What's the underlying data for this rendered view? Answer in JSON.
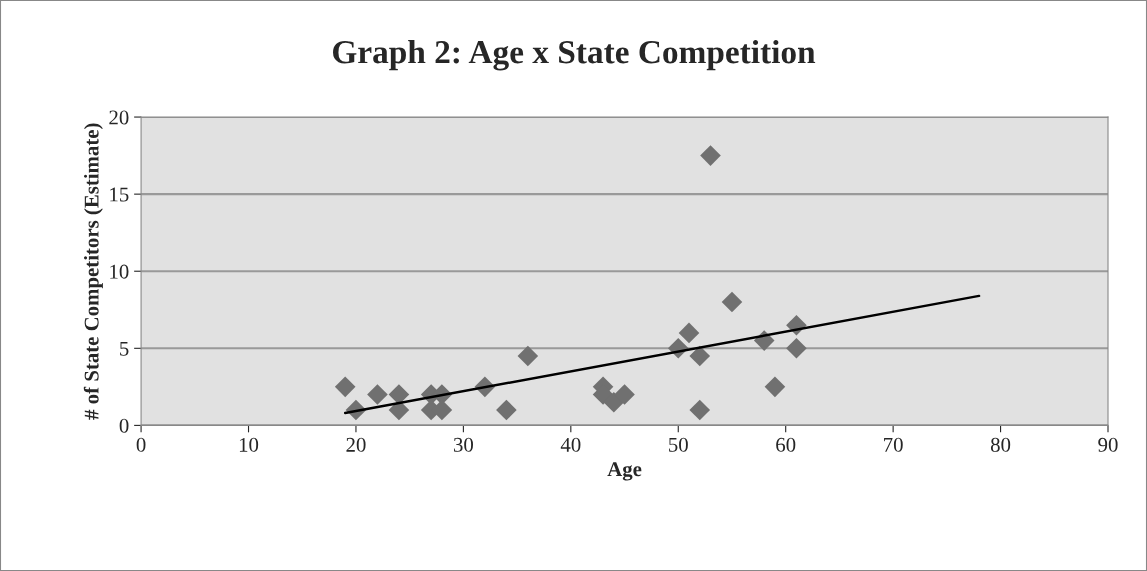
{
  "chart_data": {
    "type": "scatter",
    "title": "Graph 2: Age x State Competition",
    "xlabel": "Age",
    "ylabel": "# of State Competitors (Estimate)",
    "xlim": [
      0,
      90
    ],
    "xticks": [
      0,
      10,
      20,
      30,
      40,
      50,
      60,
      70,
      80,
      90
    ],
    "ylim": [
      0,
      20
    ],
    "yticks": [
      0,
      5,
      10,
      15,
      20
    ],
    "grid": "y",
    "series": [
      {
        "marker": "diamond",
        "color": "#707070",
        "x": [
          19,
          20,
          22,
          24,
          24,
          27,
          27,
          28,
          28,
          32,
          34,
          36,
          43,
          43,
          44,
          45,
          50,
          51,
          52,
          52,
          53,
          55,
          58,
          59,
          61,
          61
        ],
        "values": [
          2.5,
          1,
          2,
          2,
          1,
          2,
          1,
          2,
          1,
          2.5,
          1,
          4.5,
          2.5,
          2,
          1.5,
          2,
          5,
          6,
          4.5,
          1,
          17.5,
          8,
          5.5,
          2.5,
          6.5,
          5
        ]
      },
      {
        "type": "line",
        "color": "#000000",
        "x": [
          19,
          78
        ],
        "values": [
          0.8,
          8.4
        ]
      }
    ]
  }
}
